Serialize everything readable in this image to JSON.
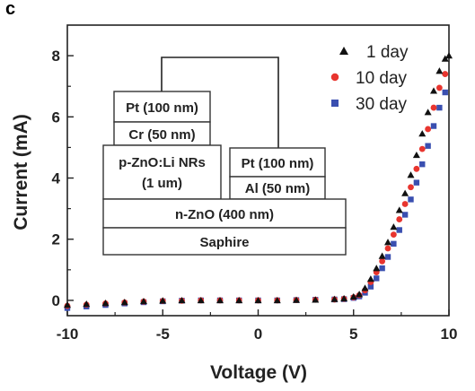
{
  "figure": {
    "panel_letter": "c"
  },
  "device_stack": {
    "layers": {
      "pt_top": "Pt (100 nm)",
      "cr": "Cr (50 nm)",
      "nrs_line1": "p-ZnO:Li NRs",
      "nrs_line2": "(1 um)",
      "pt_right": "Pt (100 nm)",
      "al": "Al (50 nm)",
      "nzno": "n-ZnO (400 nm)",
      "substrate": "Saphire"
    }
  },
  "chart_data": {
    "type": "scatter",
    "title": "",
    "xlabel": "Voltage (V)",
    "ylabel": "Current (mA)",
    "xlim": [
      -10,
      10
    ],
    "ylim": [
      -0.5,
      9
    ],
    "x_ticks": [
      -10,
      -5,
      0,
      5,
      10
    ],
    "y_ticks": [
      0,
      2,
      4,
      6,
      8
    ],
    "grid": false,
    "legend_position": "top-right",
    "series": [
      {
        "name": "1 day",
        "marker": "triangle",
        "color": "#111111",
        "x": [
          -10,
          -9,
          -8,
          -7,
          -6,
          -5,
          -4,
          -3,
          -2,
          -1,
          0,
          1,
          2,
          3,
          4,
          4.5,
          5,
          5.3,
          5.6,
          5.9,
          6.2,
          6.5,
          6.8,
          7.1,
          7.4,
          7.7,
          8.0,
          8.3,
          8.6,
          8.9,
          9.2,
          9.5,
          9.8,
          10
        ],
        "y": [
          -0.15,
          -0.12,
          -0.09,
          -0.06,
          -0.03,
          -0.01,
          0.0,
          0.0,
          0.0,
          0.0,
          0.0,
          0.0,
          0.01,
          0.02,
          0.04,
          0.06,
          0.12,
          0.2,
          0.4,
          0.7,
          1.05,
          1.45,
          1.9,
          2.4,
          2.95,
          3.5,
          4.1,
          4.75,
          5.45,
          6.15,
          6.85,
          7.5,
          7.9,
          8.0
        ]
      },
      {
        "name": "10 day",
        "marker": "circle",
        "color": "#e8352f",
        "x": [
          -10,
          -9,
          -8,
          -7,
          -6,
          -5,
          -4,
          -3,
          -2,
          -1,
          0,
          1,
          2,
          3,
          4,
          4.5,
          5,
          5.3,
          5.6,
          5.9,
          6.2,
          6.5,
          6.8,
          7.1,
          7.4,
          7.7,
          8.0,
          8.3,
          8.6,
          8.9,
          9.2,
          9.5,
          9.8
        ],
        "y": [
          -0.18,
          -0.14,
          -0.1,
          -0.07,
          -0.04,
          -0.02,
          -0.01,
          0.0,
          0.0,
          0.0,
          0.0,
          0.0,
          0.01,
          0.02,
          0.03,
          0.05,
          0.1,
          0.17,
          0.33,
          0.6,
          0.92,
          1.28,
          1.7,
          2.15,
          2.65,
          3.15,
          3.7,
          4.3,
          4.95,
          5.6,
          6.3,
          6.95,
          7.4
        ]
      },
      {
        "name": "30 day",
        "marker": "square",
        "color": "#3a4fb0",
        "x": [
          -10,
          -9,
          -8,
          -7,
          -6,
          -5,
          -4,
          -3,
          -2,
          -1,
          0,
          1,
          2,
          3,
          4,
          4.5,
          5,
          5.3,
          5.6,
          5.9,
          6.2,
          6.5,
          6.8,
          7.1,
          7.4,
          7.7,
          8.0,
          8.3,
          8.6,
          8.9,
          9.2,
          9.5,
          9.8
        ],
        "y": [
          -0.25,
          -0.2,
          -0.15,
          -0.1,
          -0.06,
          -0.03,
          -0.01,
          0.0,
          0.0,
          0.0,
          0.0,
          0.0,
          0.01,
          0.02,
          0.03,
          0.04,
          0.08,
          0.13,
          0.25,
          0.45,
          0.72,
          1.05,
          1.42,
          1.85,
          2.3,
          2.8,
          3.3,
          3.85,
          4.45,
          5.05,
          5.7,
          6.3,
          6.8
        ]
      }
    ]
  }
}
